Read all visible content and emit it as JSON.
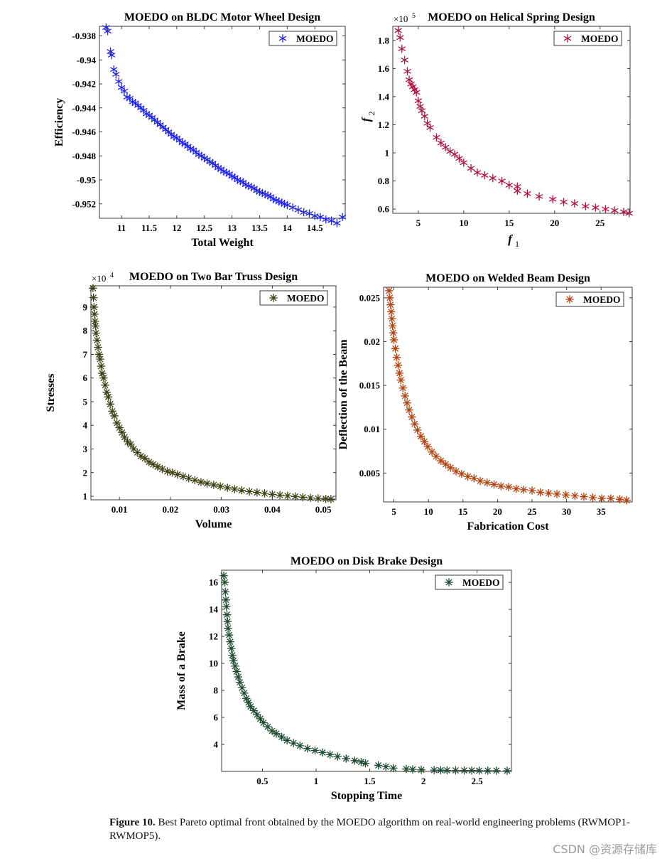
{
  "chart_data": [
    {
      "type": "scatter",
      "title": "MOEDO on BLDC Motor Wheel Design",
      "xlabel": "Total Weight",
      "ylabel": "Efficiency",
      "xlim": [
        10.6,
        15.05
      ],
      "ylim": [
        -0.9532,
        -0.9372
      ],
      "xticks": [
        "11",
        "11.5",
        "12",
        "12.5",
        "13",
        "13.5",
        "14",
        "14.5"
      ],
      "yticks": [
        "-0.938",
        "-0.94",
        "-0.942",
        "-0.944",
        "-0.946",
        "-0.948",
        "-0.95",
        "-0.952"
      ],
      "exponent_label": "",
      "legend": "MOEDO",
      "legend_position": "top-right",
      "color": "#1f22ee",
      "marker": "asterisk-6",
      "series": [
        {
          "name": "MOEDO",
          "x": [
            10.72,
            10.75,
            10.8,
            10.82,
            10.86,
            10.9,
            10.95,
            11.0,
            11.05,
            11.1,
            11.15,
            11.2,
            11.25,
            11.3,
            11.35,
            11.4,
            11.45,
            11.5,
            11.55,
            11.6,
            11.65,
            11.7,
            11.75,
            11.8,
            11.85,
            11.9,
            11.95,
            12.0,
            12.05,
            12.1,
            12.15,
            12.2,
            12.25,
            12.3,
            12.35,
            12.4,
            12.45,
            12.5,
            12.55,
            12.6,
            12.65,
            12.7,
            12.75,
            12.8,
            12.85,
            12.9,
            12.95,
            13.0,
            13.05,
            13.1,
            13.15,
            13.2,
            13.25,
            13.3,
            13.35,
            13.4,
            13.45,
            13.5,
            13.55,
            13.6,
            13.65,
            13.7,
            13.75,
            13.8,
            13.85,
            13.9,
            13.95,
            14.0,
            14.1,
            14.2,
            14.3,
            14.4,
            14.5,
            14.6,
            14.7,
            14.8,
            14.9,
            15.0
          ],
          "y": [
            -0.9373,
            -0.9376,
            -0.9393,
            -0.9396,
            -0.9408,
            -0.9412,
            -0.9418,
            -0.9423,
            -0.9426,
            -0.9431,
            -0.9432,
            -0.9435,
            -0.9436,
            -0.9438,
            -0.944,
            -0.9442,
            -0.9445,
            -0.9446,
            -0.9448,
            -0.945,
            -0.9452,
            -0.9454,
            -0.9456,
            -0.9458,
            -0.946,
            -0.9462,
            -0.9464,
            -0.9465,
            -0.9467,
            -0.9469,
            -0.947,
            -0.9472,
            -0.9474,
            -0.9475,
            -0.9477,
            -0.9479,
            -0.948,
            -0.9482,
            -0.9483,
            -0.9485,
            -0.9486,
            -0.9488,
            -0.949,
            -0.9491,
            -0.9493,
            -0.9494,
            -0.9495,
            -0.9497,
            -0.9498,
            -0.95,
            -0.9501,
            -0.9502,
            -0.9504,
            -0.9505,
            -0.9506,
            -0.9507,
            -0.9509,
            -0.951,
            -0.9511,
            -0.9512,
            -0.9513,
            -0.9514,
            -0.9516,
            -0.9517,
            -0.9518,
            -0.9519,
            -0.952,
            -0.9521,
            -0.9523,
            -0.9525,
            -0.9527,
            -0.9528,
            -0.953,
            -0.9531,
            -0.9533,
            -0.9534,
            -0.9536,
            -0.9531
          ]
        }
      ]
    },
    {
      "type": "scatter",
      "title": "MOEDO on Helical Spring Design",
      "xlabel": "f",
      "xlabel_sub": "1",
      "ylabel": "f",
      "ylabel_sub": "2",
      "xlim": [
        2.2,
        28.3
      ],
      "ylim": [
        0.57,
        1.9
      ],
      "xticks": [
        "5",
        "10",
        "15",
        "20",
        "25"
      ],
      "yticks": [
        "0.6",
        "0.8",
        "1",
        "1.2",
        "1.4",
        "1.6",
        "1.8"
      ],
      "exponent_label": "×10",
      "exponent_power": "5",
      "legend": "MOEDO",
      "legend_position": "top-right",
      "color": "#b0103c",
      "marker": "asterisk-6",
      "series": [
        {
          "name": "MOEDO",
          "x": [
            2.8,
            3.0,
            3.2,
            3.5,
            3.8,
            4.0,
            4.2,
            4.4,
            4.6,
            4.8,
            5.0,
            5.2,
            5.4,
            5.7,
            6.0,
            6.3,
            7.0,
            7.5,
            8.0,
            8.5,
            9.0,
            9.5,
            10.0,
            10.8,
            11.5,
            12.3,
            13.2,
            14.2,
            15.0,
            15.9,
            15.9,
            17.0,
            18.3,
            19.8,
            21.0,
            22.2,
            23.4,
            24.5,
            25.6,
            26.6,
            27.6,
            28.2
          ],
          "y": [
            1.87,
            1.82,
            1.74,
            1.66,
            1.58,
            1.52,
            1.49,
            1.47,
            1.45,
            1.43,
            1.37,
            1.33,
            1.3,
            1.26,
            1.21,
            1.18,
            1.11,
            1.07,
            1.04,
            1.01,
            0.99,
            0.96,
            0.93,
            0.89,
            0.86,
            0.84,
            0.82,
            0.8,
            0.77,
            0.76,
            0.73,
            0.71,
            0.69,
            0.67,
            0.65,
            0.64,
            0.62,
            0.61,
            0.6,
            0.59,
            0.58,
            0.57
          ]
        }
      ]
    },
    {
      "type": "scatter",
      "title": "MOEDO on Two Bar Truss Design",
      "xlabel": "Volume",
      "ylabel": "Stresses",
      "xlim": [
        0.0044,
        0.0525
      ],
      "ylim": [
        0.85,
        9.9
      ],
      "xticks": [
        "0.01",
        "0.02",
        "0.03",
        "0.04",
        "0.05"
      ],
      "yticks": [
        "1",
        "2",
        "3",
        "4",
        "5",
        "6",
        "7",
        "8",
        "9"
      ],
      "exponent_label": "×10",
      "exponent_power": "4",
      "legend": "MOEDO",
      "legend_position": "top-right",
      "color": "#3d4012",
      "marker": "asterisk-8",
      "series": [
        {
          "name": "MOEDO",
          "x": [
            0.0048,
            0.0049,
            0.005,
            0.0051,
            0.0052,
            0.0053,
            0.0054,
            0.0056,
            0.0058,
            0.006,
            0.0062,
            0.0064,
            0.0066,
            0.0069,
            0.0072,
            0.0075,
            0.0078,
            0.0082,
            0.0086,
            0.009,
            0.0095,
            0.01,
            0.0105,
            0.011,
            0.0116,
            0.0122,
            0.0128,
            0.0135,
            0.0142,
            0.015,
            0.0158,
            0.0166,
            0.0175,
            0.0184,
            0.0194,
            0.0204,
            0.0214,
            0.0225,
            0.0236,
            0.0248,
            0.026,
            0.0272,
            0.0285,
            0.0298,
            0.0312,
            0.0326,
            0.034,
            0.0355,
            0.037,
            0.0385,
            0.04,
            0.0415,
            0.043,
            0.0445,
            0.046,
            0.0475,
            0.049,
            0.0505,
            0.0515
          ],
          "y": [
            9.8,
            9.4,
            9.0,
            8.7,
            8.4,
            8.2,
            7.9,
            7.6,
            7.3,
            7.0,
            6.8,
            6.5,
            6.2,
            6.0,
            5.7,
            5.4,
            5.2,
            4.9,
            4.6,
            4.4,
            4.1,
            3.9,
            3.7,
            3.5,
            3.3,
            3.2,
            3.0,
            2.85,
            2.7,
            2.6,
            2.45,
            2.35,
            2.25,
            2.15,
            2.05,
            2.0,
            1.92,
            1.84,
            1.76,
            1.68,
            1.6,
            1.54,
            1.48,
            1.42,
            1.36,
            1.3,
            1.25,
            1.2,
            1.16,
            1.12,
            1.08,
            1.05,
            1.02,
            0.99,
            0.96,
            0.93,
            0.91,
            0.89,
            0.88
          ]
        }
      ]
    },
    {
      "type": "scatter",
      "title": "MOEDO on Welded Beam Design",
      "xlabel": "Fabrication Cost",
      "ylabel": "Deflection of the Beam",
      "xlim": [
        3.5,
        39.5
      ],
      "ylim": [
        0.0017,
        0.0262
      ],
      "xticks": [
        "5",
        "10",
        "15",
        "20",
        "25",
        "30",
        "35"
      ],
      "yticks": [
        "0.005",
        "0.01",
        "0.015",
        "0.02",
        "0.025"
      ],
      "exponent_label": "",
      "legend": "MOEDO",
      "legend_position": "top-right",
      "color": "#b4420e",
      "marker": "asterisk-8",
      "series": [
        {
          "name": "MOEDO",
          "x": [
            4.3,
            4.4,
            4.5,
            4.6,
            4.7,
            4.8,
            4.9,
            5.0,
            5.2,
            5.4,
            5.6,
            5.8,
            6.0,
            6.3,
            6.6,
            6.9,
            7.2,
            7.6,
            8.0,
            8.4,
            8.9,
            9.4,
            9.9,
            10.5,
            11.1,
            11.8,
            12.5,
            13.2,
            14.0,
            14.8,
            15.7,
            16.6,
            17.5,
            18.5,
            19.5,
            20.5,
            21.6,
            22.7,
            23.8,
            25.0,
            26.2,
            27.4,
            28.6,
            29.9,
            31.2,
            32.5,
            33.8,
            35.1,
            36.4,
            37.7,
            38.7
          ],
          "y": [
            0.0258,
            0.025,
            0.0242,
            0.0234,
            0.0226,
            0.0218,
            0.021,
            0.0202,
            0.0192,
            0.0182,
            0.0173,
            0.0164,
            0.0156,
            0.0147,
            0.0138,
            0.013,
            0.0122,
            0.0114,
            0.0106,
            0.0099,
            0.0092,
            0.0086,
            0.008,
            0.0074,
            0.0069,
            0.0064,
            0.006,
            0.0056,
            0.0052,
            0.0049,
            0.0046,
            0.0044,
            0.0041,
            0.0039,
            0.0037,
            0.0035,
            0.0034,
            0.0032,
            0.0031,
            0.003,
            0.0028,
            0.0027,
            0.0026,
            0.0025,
            0.0024,
            0.0023,
            0.0022,
            0.0021,
            0.0021,
            0.002,
            0.0019
          ]
        }
      ]
    },
    {
      "type": "scatter",
      "title": "MOEDO on Disk Brake Design",
      "xlabel": "Stopping Time",
      "ylabel": "Mass of a Brake",
      "xlim": [
        0.12,
        2.82
      ],
      "ylim": [
        2.0,
        16.9
      ],
      "xticks": [
        "0.5",
        "1",
        "1.5",
        "2",
        "2.5"
      ],
      "yticks": [
        "4",
        "6",
        "8",
        "10",
        "12",
        "14",
        "16"
      ],
      "exponent_label": "",
      "legend": "MOEDO",
      "legend_position": "top-right",
      "color": "#1d4a30",
      "marker": "asterisk-8",
      "series": [
        {
          "name": "MOEDO",
          "x": [
            0.14,
            0.15,
            0.155,
            0.16,
            0.165,
            0.17,
            0.175,
            0.18,
            0.19,
            0.2,
            0.21,
            0.22,
            0.23,
            0.245,
            0.26,
            0.275,
            0.29,
            0.31,
            0.33,
            0.35,
            0.37,
            0.39,
            0.42,
            0.45,
            0.48,
            0.51,
            0.55,
            0.59,
            0.63,
            0.68,
            0.73,
            0.79,
            0.85,
            0.92,
            0.99,
            1.06,
            1.13,
            1.2,
            1.28,
            1.36,
            1.42,
            1.46,
            1.58,
            1.65,
            1.72,
            1.84,
            1.9,
            1.98,
            2.1,
            2.16,
            2.22,
            2.3,
            2.38,
            2.45,
            2.52,
            2.6,
            2.68,
            2.78
          ],
          "y": [
            16.5,
            16.0,
            15.3,
            14.7,
            14.2,
            13.6,
            13.1,
            12.6,
            12.1,
            11.6,
            11.1,
            10.6,
            10.2,
            9.8,
            9.4,
            9.0,
            8.6,
            8.2,
            7.8,
            7.4,
            7.1,
            6.8,
            6.5,
            6.2,
            5.9,
            5.6,
            5.3,
            5.0,
            4.8,
            4.55,
            4.3,
            4.1,
            3.9,
            3.7,
            3.55,
            3.4,
            3.25,
            3.1,
            2.95,
            2.8,
            2.7,
            2.6,
            2.45,
            2.35,
            2.25,
            2.18,
            2.15,
            2.12,
            2.1,
            2.09,
            2.08,
            2.08,
            2.07,
            2.07,
            2.06,
            2.06,
            2.06,
            2.05
          ]
        }
      ]
    }
  ],
  "caption": {
    "label": "Figure 10.",
    "text": " Best Pareto optimal front obtained by the MOEDO algorithm on real-world engineering problems (RWMOP1-RWMOP5)."
  },
  "watermark": "CSDN @资源存储库"
}
